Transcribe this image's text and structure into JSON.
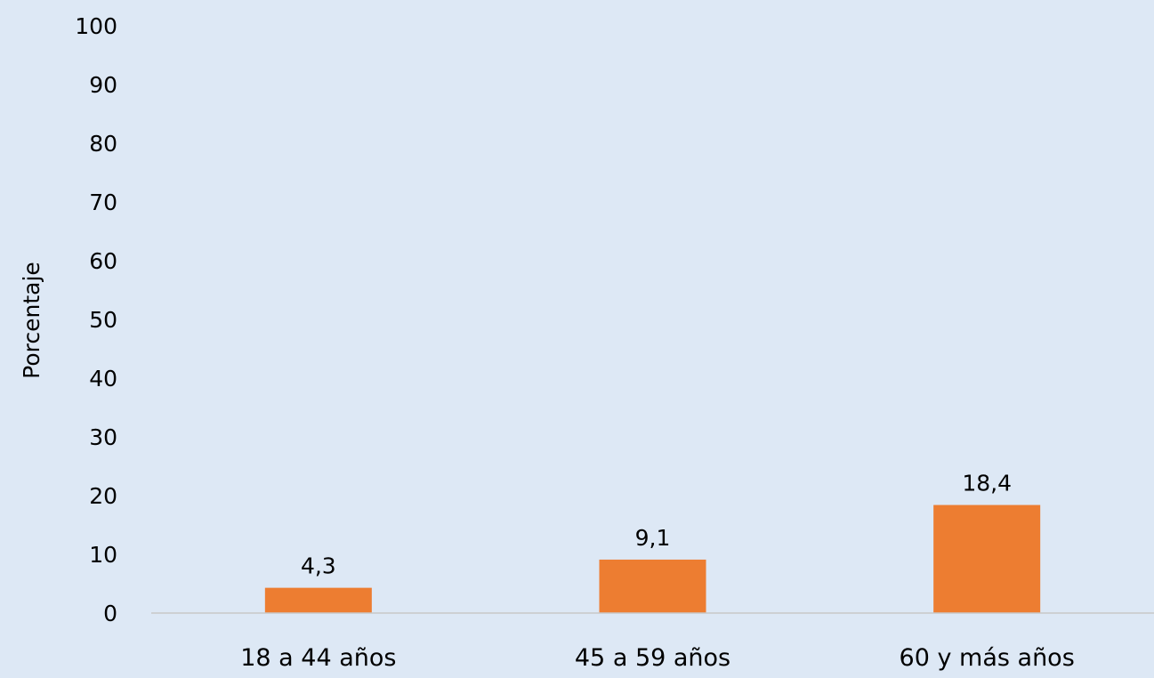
{
  "chart_data": {
    "type": "bar",
    "categories": [
      "18 a 44 años",
      "45 a 59 años",
      "60 y más años"
    ],
    "values": [
      4.3,
      9.1,
      18.4
    ],
    "data_labels": [
      "4,3",
      "9,1",
      "18,4"
    ],
    "ylabel": "Porcentaje",
    "ylim": [
      0,
      100
    ],
    "yticks": [
      0,
      10,
      20,
      30,
      40,
      50,
      60,
      70,
      80,
      90,
      100
    ],
    "grid": false,
    "legend": "none",
    "colors": {
      "bar": "#ed7d31",
      "background": "#dde8f5",
      "axis": "#c8c8c8"
    }
  }
}
